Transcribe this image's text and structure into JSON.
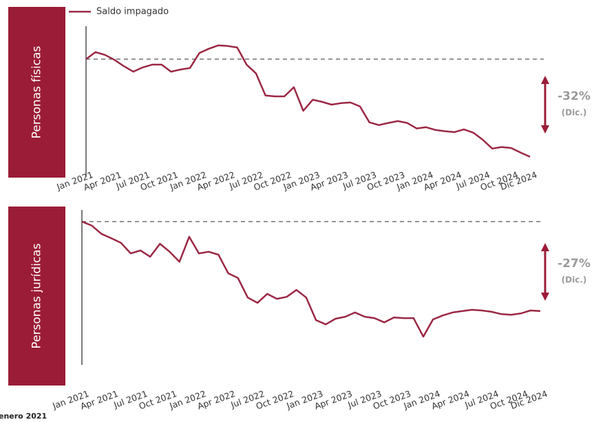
{
  "chart_data": [
    {
      "type": "line",
      "panel_label": "Personas físicas",
      "categories": [
        "Jan 2021",
        null,
        null,
        "Apr 2021",
        null,
        null,
        "Jul 2021",
        null,
        null,
        "Oct 2021",
        null,
        null,
        "Jan 2022",
        null,
        null,
        "Apr 2022",
        null,
        null,
        "Jul 2022",
        null,
        null,
        "Oct 2022",
        null,
        null,
        "Jan 2023",
        null,
        null,
        "Apr 2023",
        null,
        null,
        "Jul 2023",
        null,
        null,
        "Oct 2023",
        null,
        null,
        "Jan 2024",
        null,
        null,
        "Apr 2024",
        null,
        null,
        "Jul 2024",
        null,
        null,
        "Oct 2024",
        null,
        "Dic 2024"
      ],
      "series": [
        {
          "name": "Saldo impagado",
          "color": "#9b2743",
          "values": [
            100,
            102.3,
            101.4,
            99.8,
            97.7,
            95.9,
            97.3,
            98.2,
            98.2,
            95.9,
            96.6,
            97.1,
            102.0,
            103.4,
            104.5,
            104.3,
            103.8,
            98.2,
            95.3,
            88.1,
            87.8,
            87.8,
            90.8,
            83.1,
            86.7,
            86.0,
            85.1,
            85.6,
            85.8,
            84.5,
            79.3,
            78.4,
            79.1,
            79.7,
            79.1,
            77.3,
            77.7,
            76.8,
            76.4,
            76.1,
            77.0,
            75.9,
            73.6,
            70.7,
            71.2,
            70.9,
            69.4,
            68.0
          ]
        }
      ],
      "reference": 100,
      "ylim": [
        63,
        110.8
      ],
      "annotation": "-32%",
      "annotation_note": "(Dic.)"
    },
    {
      "type": "line",
      "panel_label": "Personas jurídicas",
      "categories": [
        "Jan 2021",
        null,
        null,
        "Apr 2021",
        null,
        null,
        "Jul 2021",
        null,
        null,
        "Oct 2021",
        null,
        null,
        "Jan 2022",
        null,
        null,
        "Apr 2022",
        null,
        null,
        "Jul 2022",
        null,
        null,
        "Oct 2022",
        null,
        null,
        "Jan 2023",
        null,
        null,
        "Apr 2023",
        null,
        null,
        "Jul 2023",
        null,
        null,
        "Oct 2023",
        null,
        null,
        "Jan 2024",
        null,
        null,
        "Apr 2024",
        null,
        null,
        "Jul 2024",
        null,
        null,
        "Oct 2024",
        null,
        "Dic 2024"
      ],
      "series": [
        {
          "color": "#9b2743",
          "values": [
            100,
            98.8,
            96.3,
            95.0,
            93.6,
            90.4,
            91.3,
            89.4,
            93.3,
            90.9,
            87.9,
            95.4,
            90.4,
            90.9,
            90.0,
            84.4,
            83.0,
            77.1,
            75.5,
            78.2,
            76.7,
            77.3,
            79.4,
            77.1,
            70.3,
            69.0,
            70.7,
            71.3,
            72.6,
            71.3,
            70.9,
            69.6,
            71.1,
            70.9,
            70.9,
            65.3,
            70.5,
            71.7,
            72.6,
            73.0,
            73.4,
            73.2,
            72.8,
            72.1,
            71.9,
            72.3,
            73.2,
            73.0
          ]
        }
      ],
      "reference": 100,
      "ylim": [
        56.8,
        103.5
      ],
      "annotation": "-27%",
      "annotation_note": "(Dic.)"
    }
  ],
  "footnote": "enero 2021"
}
